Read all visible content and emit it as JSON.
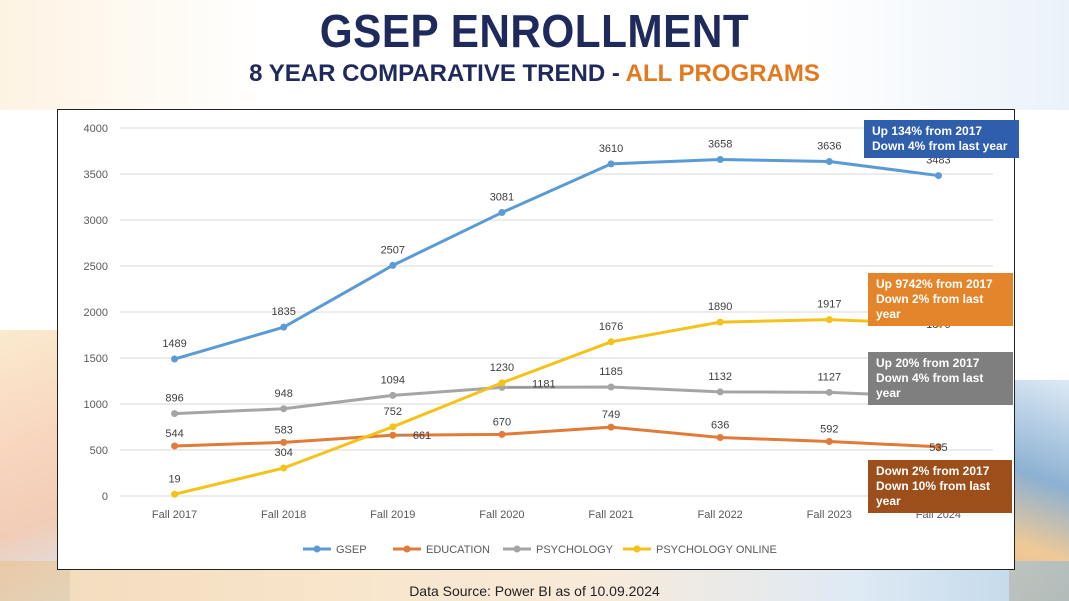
{
  "page": {
    "title": "GSEP ENROLLMENT",
    "subtitle_main": "8 YEAR COMPARATIVE TREND -",
    "subtitle_accent": "ALL PROGRAMS",
    "source": "Data Source: Power BI as of 10.09.2024"
  },
  "colors": {
    "title": "#1f2a5c",
    "accent": "#e2791f",
    "gsep": "#5b9bd5",
    "education": "#e07b39",
    "psychology": "#a5a5a5",
    "psych_online": "#f5c21b"
  },
  "chart_data": {
    "type": "line",
    "title": "8 YEAR COMPARATIVE TREND - ALL PROGRAMS",
    "categories": [
      "Fall 2017",
      "Fall 2018",
      "Fall 2019",
      "Fall 2020",
      "Fall 2021",
      "Fall 2022",
      "Fall 2023",
      "Fall 2024"
    ],
    "ylim": [
      0,
      4000
    ],
    "yticks": [
      0,
      500,
      1000,
      1500,
      2000,
      2500,
      3000,
      3500,
      4000
    ],
    "grid": true,
    "legend_position": "bottom",
    "series": [
      {
        "key": "gsep",
        "name": "GSEP",
        "color": "#5b9bd5",
        "values": [
          1489,
          1835,
          2507,
          3081,
          3610,
          3658,
          3636,
          3483
        ]
      },
      {
        "key": "education",
        "name": "EDUCATION",
        "color": "#e07b39",
        "values": [
          544,
          583,
          661,
          670,
          749,
          636,
          592,
          535
        ]
      },
      {
        "key": "psychology",
        "name": "PSYCHOLOGY",
        "color": "#a5a5a5",
        "values": [
          896,
          948,
          1094,
          1181,
          1185,
          1132,
          1127,
          1078
        ]
      },
      {
        "key": "psych_online",
        "name": "PSYCHOLOGY ONLINE",
        "color": "#f5c21b",
        "values": [
          19,
          304,
          752,
          1230,
          1676,
          1890,
          1917,
          1870
        ]
      }
    ],
    "annotations": [
      {
        "key": "gsep",
        "line1": "Up 134% from 2017",
        "line2": "Down 4% from last year",
        "bg": "#2f5eac"
      },
      {
        "key": "psych_online",
        "line1": "Up 9742% from 2017",
        "line2": "Down 2% from last year",
        "bg": "#e5852b"
      },
      {
        "key": "psychology",
        "line1": "Up 20% from 2017",
        "line2": "Down 4% from last year",
        "bg": "#7f7f7f"
      },
      {
        "key": "education",
        "line1": "Down 2% from 2017",
        "line2": "Down 10% from last year",
        "bg": "#9c4f1a"
      }
    ]
  }
}
